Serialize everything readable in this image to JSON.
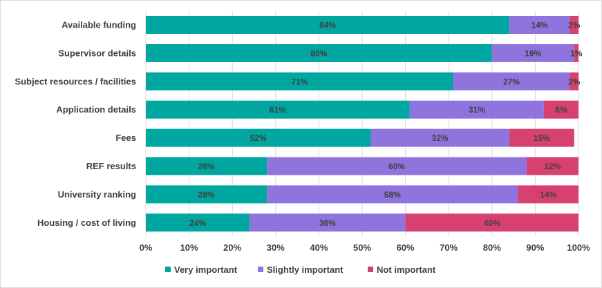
{
  "chart_data": {
    "type": "bar",
    "orientation": "horizontal",
    "stacked": true,
    "percent_stacked": true,
    "categories": [
      "Available funding",
      "Supervisor details",
      "Subject resources / facilities",
      "Application details",
      "Fees",
      "REF results",
      "University ranking",
      "Housing / cost of living"
    ],
    "series": [
      {
        "name": "Very important",
        "color": "#00a6a0",
        "values": [
          84,
          80,
          71,
          61,
          52,
          28,
          28,
          24
        ]
      },
      {
        "name": "Slightly important",
        "color": "#8f74de",
        "values": [
          14,
          19,
          27,
          31,
          32,
          60,
          58,
          36
        ]
      },
      {
        "name": "Not important",
        "color": "#d6416f",
        "values": [
          2,
          1,
          2,
          8,
          15,
          12,
          14,
          40
        ]
      }
    ],
    "xlim": [
      0,
      100
    ],
    "xticks": [
      "0%",
      "10%",
      "20%",
      "30%",
      "40%",
      "50%",
      "60%",
      "70%",
      "80%",
      "90%",
      "100%"
    ],
    "value_suffix": "%",
    "grid": true,
    "legend_position": "bottom",
    "title": "",
    "xlabel": "",
    "ylabel": ""
  }
}
